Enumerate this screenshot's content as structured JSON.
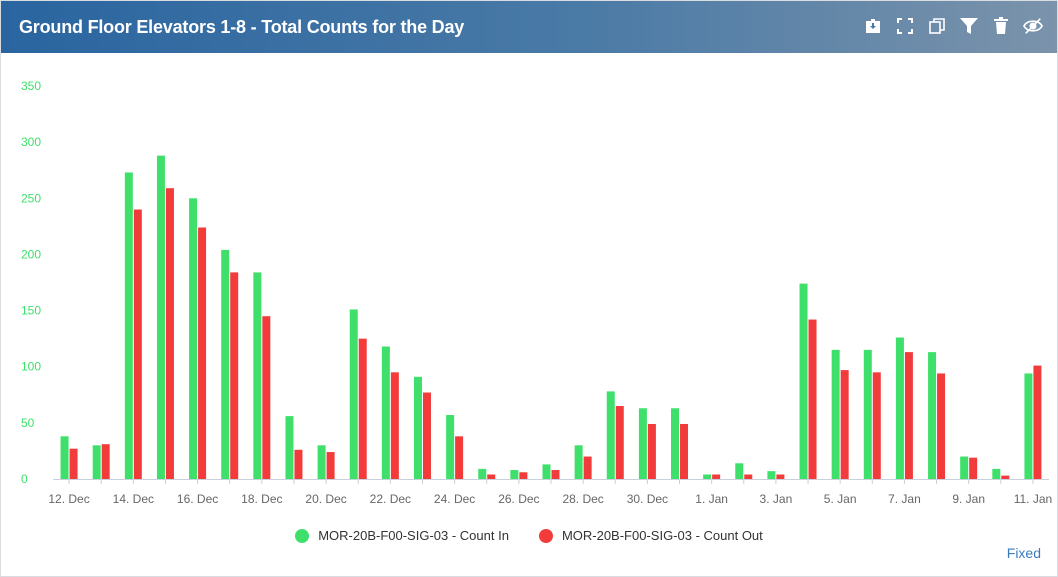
{
  "header": {
    "title": "Ground Floor Elevators 1-8 - Total Counts for the Day",
    "tools": [
      {
        "name": "download-icon"
      },
      {
        "name": "fullscreen-icon"
      },
      {
        "name": "copy-icon"
      },
      {
        "name": "filter-icon"
      },
      {
        "name": "trash-icon"
      },
      {
        "name": "hide-icon"
      }
    ]
  },
  "footer": {
    "fixed_label": "Fixed"
  },
  "chart_data": {
    "type": "bar",
    "title": "",
    "xlabel": "",
    "ylabel": "",
    "ylim": [
      0,
      350
    ],
    "yticks": [
      0,
      50,
      100,
      150,
      200,
      250,
      300,
      350
    ],
    "grid": false,
    "legend": "bottom-center",
    "categories": [
      "12. Dec",
      "13. Dec",
      "14. Dec",
      "15. Dec",
      "16. Dec",
      "17. Dec",
      "18. Dec",
      "19. Dec",
      "20. Dec",
      "21. Dec",
      "22. Dec",
      "23. Dec",
      "24. Dec",
      "25. Dec",
      "26. Dec",
      "27. Dec",
      "28. Dec",
      "29. Dec",
      "30. Dec",
      "31. Dec",
      "1. Jan",
      "2. Jan",
      "3. Jan",
      "4. Jan",
      "5. Jan",
      "6. Jan",
      "7. Jan",
      "8. Jan",
      "9. Jan",
      "10. Jan",
      "11. Jan"
    ],
    "tick_labels": [
      "12. Dec",
      "14. Dec",
      "16. Dec",
      "18. Dec",
      "20. Dec",
      "22. Dec",
      "24. Dec",
      "26. Dec",
      "28. Dec",
      "30. Dec",
      "1. Jan",
      "3. Jan",
      "5. Jan",
      "7. Jan",
      "9. Jan",
      "11. Jan"
    ],
    "series": [
      {
        "name": "MOR-20B-F00-SIG-03 - Count In",
        "color": "#3ee06b",
        "values": [
          38,
          30,
          273,
          288,
          250,
          204,
          184,
          56,
          30,
          151,
          118,
          91,
          57,
          9,
          8,
          13,
          30,
          78,
          63,
          63,
          4,
          14,
          7,
          174,
          115,
          115,
          126,
          113,
          20,
          9,
          94
        ]
      },
      {
        "name": "MOR-20B-F00-SIG-03 - Count Out",
        "color": "#f23c3c",
        "values": [
          27,
          31,
          240,
          259,
          224,
          184,
          145,
          26,
          24,
          125,
          95,
          77,
          38,
          4,
          6,
          8,
          20,
          65,
          49,
          49,
          4,
          4,
          4,
          142,
          97,
          95,
          113,
          94,
          19,
          3,
          101
        ]
      }
    ]
  },
  "colors": {
    "axis_text": "#3ee06b",
    "tick_text": "#666666",
    "axis_line": "#c8d0dc"
  }
}
